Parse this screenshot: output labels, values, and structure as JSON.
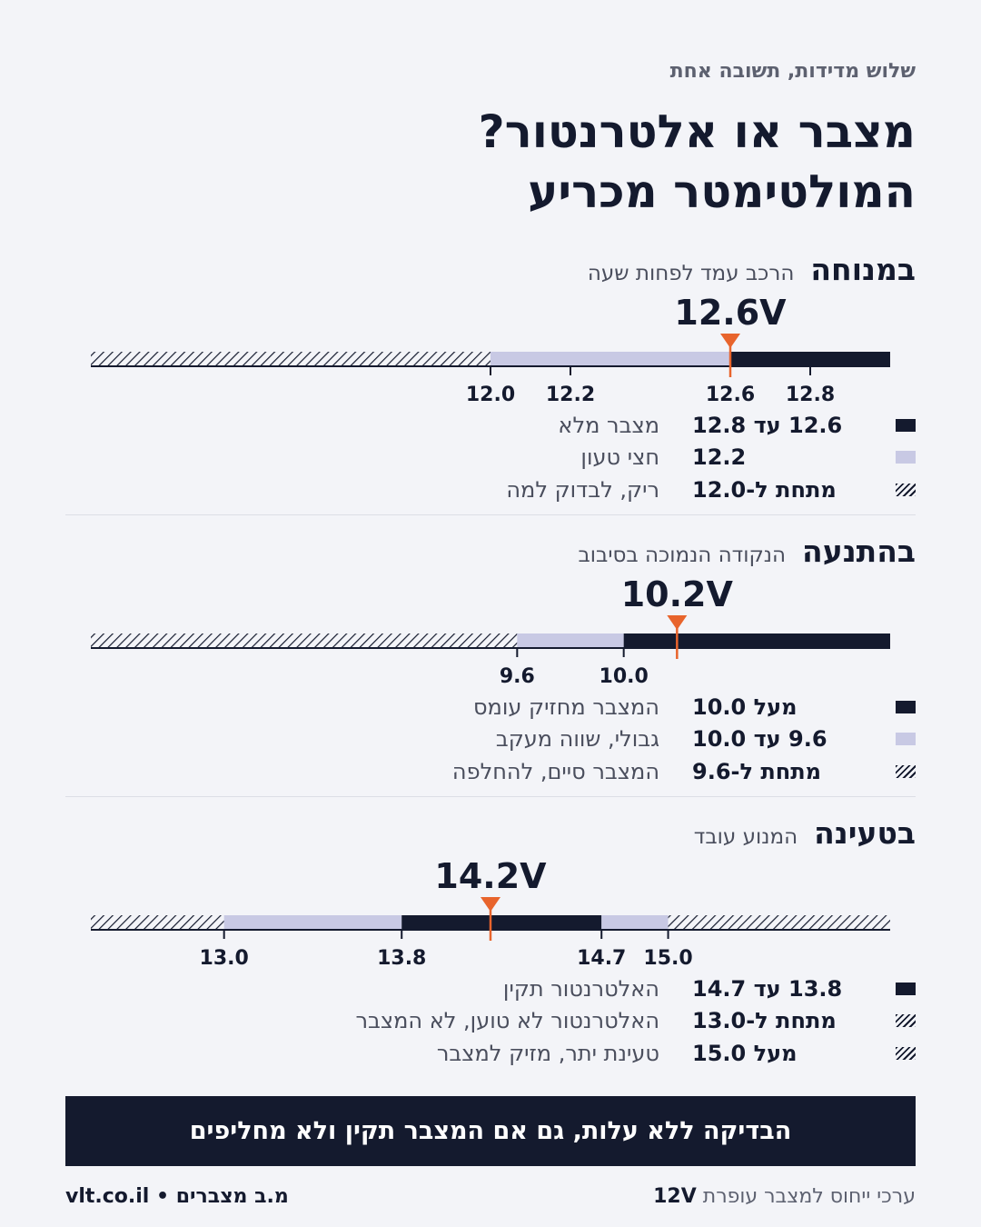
{
  "header": {
    "kicker": "שלוש מדידות, תשובה אחת",
    "title_line1": "מצבר או אלטרנטור?",
    "title_line2": "המולטימטר מכריע"
  },
  "colors": {
    "dark": "#141a2e",
    "light": "#c8c9e4",
    "marker": "#e8642c",
    "background": "#f3f4f8"
  },
  "sections": [
    {
      "name": "במנוחה",
      "subtitle": "הרכב עמד לפחות שעה",
      "reading_label": "12.6V",
      "reading_value": 12.6,
      "scale": {
        "min": 11.0,
        "max": 13.0,
        "segments": [
          {
            "type": "hatch",
            "from": 11.0,
            "to": 12.0
          },
          {
            "type": "light",
            "from": 12.0,
            "to": 12.6
          },
          {
            "type": "dark",
            "from": 12.6,
            "to": 13.0
          }
        ],
        "ticks": [
          "12.0",
          "12.2",
          "12.6",
          "12.8"
        ]
      },
      "legend": [
        {
          "swatch": "dark",
          "range": "12.6 עד 12.8",
          "text": "מצבר מלא"
        },
        {
          "swatch": "light",
          "range": "12.2",
          "text": "חצי טעון"
        },
        {
          "swatch": "hatch",
          "range": "מתחת ל-12.0",
          "text": "ריק, לבדוק למה"
        }
      ]
    },
    {
      "name": "בהתנעה",
      "subtitle": "הנקודה הנמוכה בסיבוב",
      "reading_label": "10.2V",
      "reading_value": 10.2,
      "scale": {
        "min": 8.0,
        "max": 11.0,
        "segments": [
          {
            "type": "hatch",
            "from": 8.0,
            "to": 9.6
          },
          {
            "type": "light",
            "from": 9.6,
            "to": 10.0
          },
          {
            "type": "dark",
            "from": 10.0,
            "to": 11.0
          }
        ],
        "ticks": [
          "9.6",
          "10.0"
        ]
      },
      "legend": [
        {
          "swatch": "dark",
          "range": "מעל 10.0",
          "text": "המצבר מחזיק עומס"
        },
        {
          "swatch": "light",
          "range": "9.6 עד 10.0",
          "text": "גבולי, שווה מעקב"
        },
        {
          "swatch": "hatch",
          "range": "מתחת ל-9.6",
          "text": "המצבר סיים, להחלפה"
        }
      ]
    },
    {
      "name": "בטעינה",
      "subtitle": "המנוע עובד",
      "reading_label": "14.2V",
      "reading_value": 14.2,
      "scale": {
        "min": 12.4,
        "max": 16.0,
        "segments": [
          {
            "type": "hatch",
            "from": 12.4,
            "to": 13.0
          },
          {
            "type": "light",
            "from": 13.0,
            "to": 13.8
          },
          {
            "type": "dark",
            "from": 13.8,
            "to": 14.7
          },
          {
            "type": "light",
            "from": 14.7,
            "to": 15.0
          },
          {
            "type": "hatch",
            "from": 15.0,
            "to": 16.0
          }
        ],
        "ticks": [
          "13.0",
          "13.8",
          "14.7",
          "15.0"
        ]
      },
      "legend": [
        {
          "swatch": "dark",
          "range": "13.8 עד 14.7",
          "text": "האלטרנטור תקין"
        },
        {
          "swatch": "hatch",
          "range": "מתחת ל-13.0",
          "text": "האלטרנטור לא טוען, לא המצבר"
        },
        {
          "swatch": "hatch",
          "range": "מעל 15.0",
          "text": "טעינת יתר, מזיק למצבר"
        }
      ]
    }
  ],
  "banner": "הבדיקה ללא עלות, גם אם המצבר תקין ולא מחליפים",
  "footer": {
    "note_prefix": "ערכי ייחוס למצבר עופרת",
    "note_bold": "12V",
    "brand": "מ.ב מצברים • vlt.co.il"
  }
}
